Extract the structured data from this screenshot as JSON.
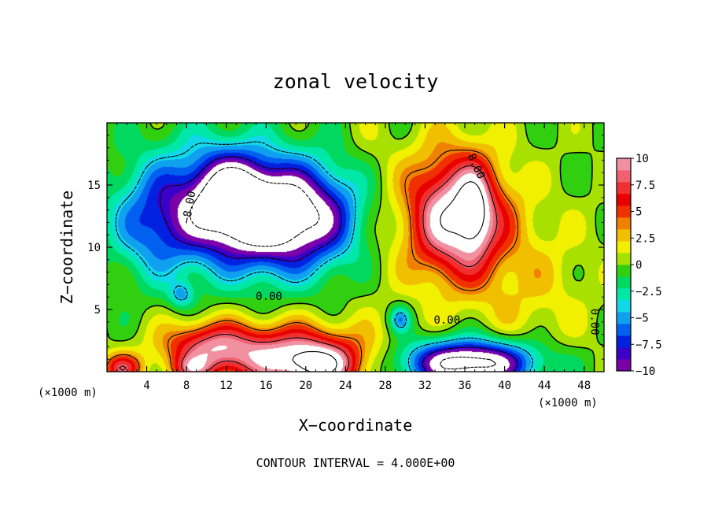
{
  "chart_data": {
    "type": "heatmap",
    "title": "zonal velocity",
    "xlabel": "X−coordinate",
    "ylabel": "Z−coordinate",
    "x_unit_left": "(×1000 m)",
    "x_unit_right": "(×1000 m)",
    "footer": "CONTOUR INTERVAL = 4.000E+00",
    "xlim": [
      0,
      50
    ],
    "ylim": [
      0,
      20
    ],
    "xticks": [
      {
        "value": 4,
        "label": "4"
      },
      {
        "value": 8,
        "label": "8"
      },
      {
        "value": 12,
        "label": "12"
      },
      {
        "value": 16,
        "label": "16"
      },
      {
        "value": 20,
        "label": "20"
      },
      {
        "value": 24,
        "label": "24"
      },
      {
        "value": 28,
        "label": "28"
      },
      {
        "value": 32,
        "label": "32"
      },
      {
        "value": 36,
        "label": "36"
      },
      {
        "value": 40,
        "label": "40"
      },
      {
        "value": 44,
        "label": "44"
      },
      {
        "value": 48,
        "label": "48"
      }
    ],
    "yticks": [
      {
        "value": 5,
        "label": "5"
      },
      {
        "value": 10,
        "label": "10"
      },
      {
        "value": 15,
        "label": "15"
      }
    ],
    "colorbar": {
      "min": -10,
      "max": 10,
      "ticks": [
        {
          "value": 10,
          "label": "10"
        },
        {
          "value": 7.5,
          "label": "7.5"
        },
        {
          "value": 5,
          "label": "5"
        },
        {
          "value": 2.5,
          "label": "2.5"
        },
        {
          "value": 0,
          "label": "0"
        },
        {
          "value": -2.5,
          "label": "−2.5"
        },
        {
          "value": -5,
          "label": "−5"
        },
        {
          "value": -7.5,
          "label": "−7.5"
        },
        {
          "value": -10,
          "label": "−10"
        }
      ],
      "colors": [
        "#7a00a8",
        "#3a00c8",
        "#0022e0",
        "#0060f0",
        "#10a0f0",
        "#10d8e8",
        "#00e8a8",
        "#00d860",
        "#30d010",
        "#a8e000",
        "#f0f000",
        "#f0c000",
        "#f08000",
        "#f03000",
        "#e80000",
        "#f03030",
        "#f06070",
        "#f090a0"
      ]
    },
    "contour_labels": [
      {
        "text": "−8.00",
        "x": 8.3,
        "y": 13.2,
        "angle": -80
      },
      {
        "text": "8.00",
        "x": 37.1,
        "y": 16.5,
        "angle": 65
      },
      {
        "text": "0.00",
        "x": 16.3,
        "y": 6.0,
        "angle": 0
      },
      {
        "text": "0.00",
        "x": 34.2,
        "y": 4.1,
        "angle": 0
      },
      {
        "text": "0.00",
        "x": 49.0,
        "y": 4.0,
        "angle": 90
      }
    ],
    "features": [
      {
        "kind": "extreme",
        "sign": "negative",
        "cx": 17.5,
        "cy": 12.5,
        "rx": 7.5,
        "ry": 4.2,
        "amplitude": -15
      },
      {
        "kind": "extreme",
        "sign": "negative",
        "cx": 12.5,
        "cy": 14.5,
        "rx": 3.6,
        "ry": 3.2,
        "amplitude": -6
      },
      {
        "kind": "extreme",
        "sign": "negative",
        "cx": 36.5,
        "cy": 0.7,
        "rx": 6.5,
        "ry": 1.8,
        "amplitude": -14
      },
      {
        "kind": "extreme",
        "sign": "negative",
        "cx": 8.5,
        "cy": 13.5,
        "rx": 7,
        "ry": 5,
        "amplitude": -5.5
      },
      {
        "kind": "extreme",
        "sign": "negative",
        "cx": 4.5,
        "cy": 11.5,
        "rx": 4,
        "ry": 4,
        "amplitude": -3.5
      },
      {
        "kind": "extreme",
        "sign": "negative",
        "cx": 29.5,
        "cy": 4.2,
        "rx": 1,
        "ry": 1,
        "amplitude": -5
      },
      {
        "kind": "extreme",
        "sign": "negative",
        "cx": 7.5,
        "cy": 6.2,
        "rx": 1.2,
        "ry": 1,
        "amplitude": -4
      },
      {
        "kind": "extreme",
        "sign": "positive",
        "cx": 35.0,
        "cy": 12.5,
        "rx": 5.0,
        "ry": 5.0,
        "amplitude": 12
      },
      {
        "kind": "extreme",
        "sign": "positive",
        "cx": 37.0,
        "cy": 13.0,
        "rx": 1.6,
        "ry": 3.2,
        "amplitude": 5
      },
      {
        "kind": "extreme",
        "sign": "positive",
        "cx": 18.5,
        "cy": 1.2,
        "rx": 7.5,
        "ry": 2.5,
        "amplitude": 10
      },
      {
        "kind": "extreme",
        "sign": "positive",
        "cx": 21.5,
        "cy": 0.4,
        "rx": 3.5,
        "ry": 1.6,
        "amplitude": 6
      },
      {
        "kind": "extreme",
        "sign": "positive",
        "cx": 10.0,
        "cy": 2.0,
        "rx": 4.5,
        "ry": 2.0,
        "amplitude": 7
      },
      {
        "kind": "extreme",
        "sign": "positive",
        "cx": 1.5,
        "cy": 0.3,
        "rx": 2.0,
        "ry": 1.2,
        "amplitude": 7
      },
      {
        "kind": "extreme",
        "sign": "positive",
        "cx": 8.5,
        "cy": 0.2,
        "rx": 2.0,
        "ry": 1.0,
        "amplitude": 5
      },
      {
        "kind": "extreme",
        "sign": "positive",
        "cx": 42.5,
        "cy": 7.0,
        "rx": 6.0,
        "ry": 6.0,
        "amplitude": 2.0
      },
      {
        "kind": "extreme",
        "sign": "positive",
        "cx": 26.5,
        "cy": 13.0,
        "rx": 3.0,
        "ry": 7.0,
        "amplitude": 1.2
      }
    ]
  }
}
